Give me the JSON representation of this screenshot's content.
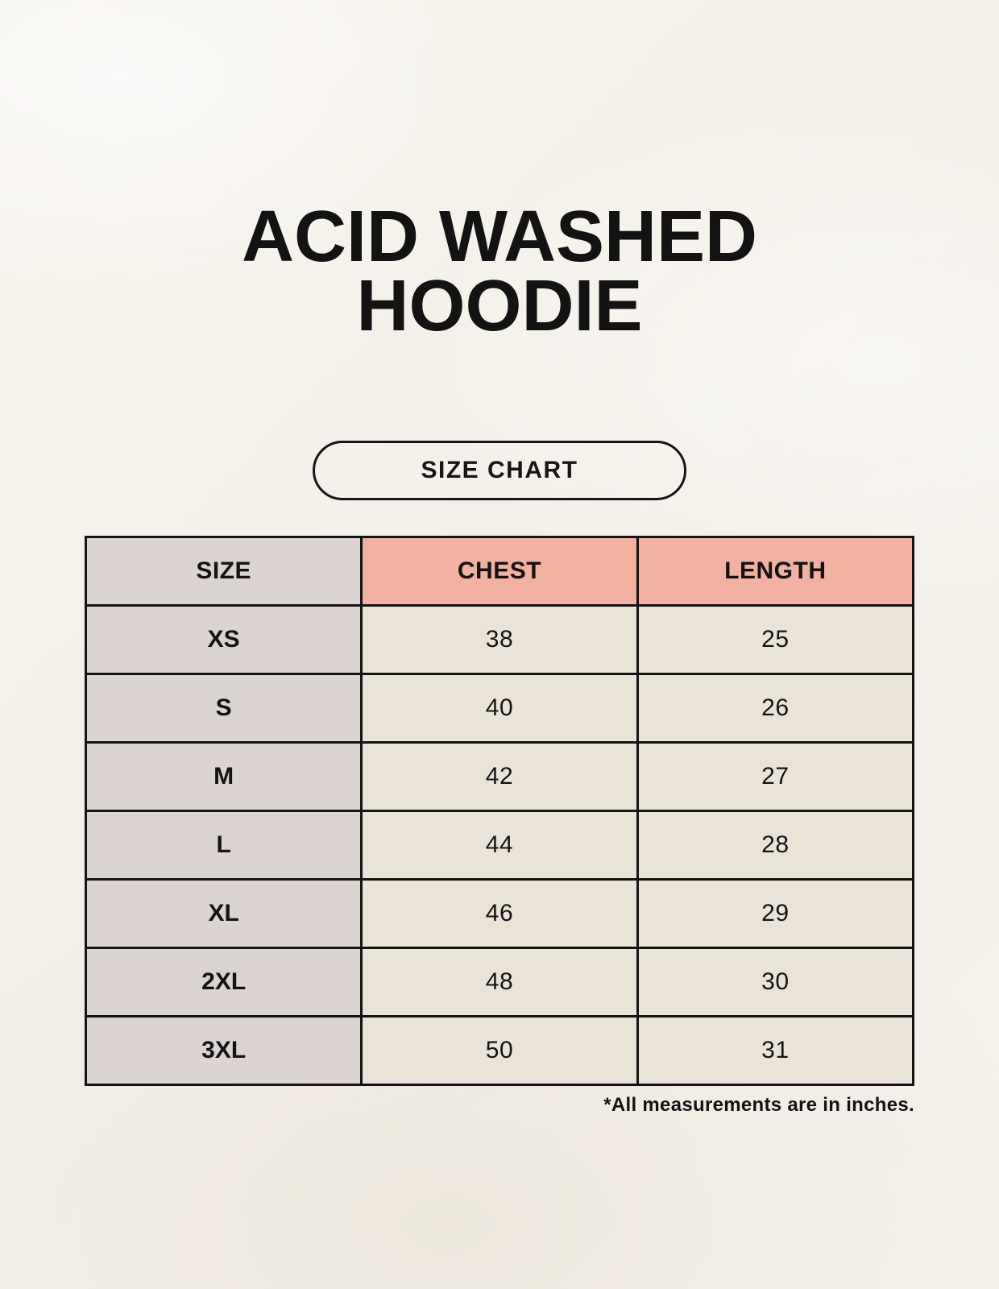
{
  "header": {
    "title_line1": "ACID WASHED",
    "title_line2": "HOODIE",
    "button_label": "SIZE CHART"
  },
  "colors": {
    "background": "#f4f0e9",
    "size_column_bg": "#dbd4d0",
    "header_accent_bg": "#f1b2a1",
    "value_cell_bg": "#eae3d7",
    "border": "#141414",
    "text": "#141414"
  },
  "footnote": "*All measurements are in inches.",
  "chart_data": {
    "type": "table",
    "title": "ACID WASHED HOODIE",
    "subtitle": "SIZE CHART",
    "units": "inches",
    "columns": [
      "SIZE",
      "CHEST",
      "LENGTH"
    ],
    "rows": [
      [
        "XS",
        "38",
        "25"
      ],
      [
        "S",
        "40",
        "26"
      ],
      [
        "M",
        "42",
        "27"
      ],
      [
        "L",
        "44",
        "28"
      ],
      [
        "XL",
        "46",
        "29"
      ],
      [
        "2XL",
        "48",
        "30"
      ],
      [
        "3XL",
        "50",
        "31"
      ]
    ],
    "note": "*All measurements are in inches."
  }
}
